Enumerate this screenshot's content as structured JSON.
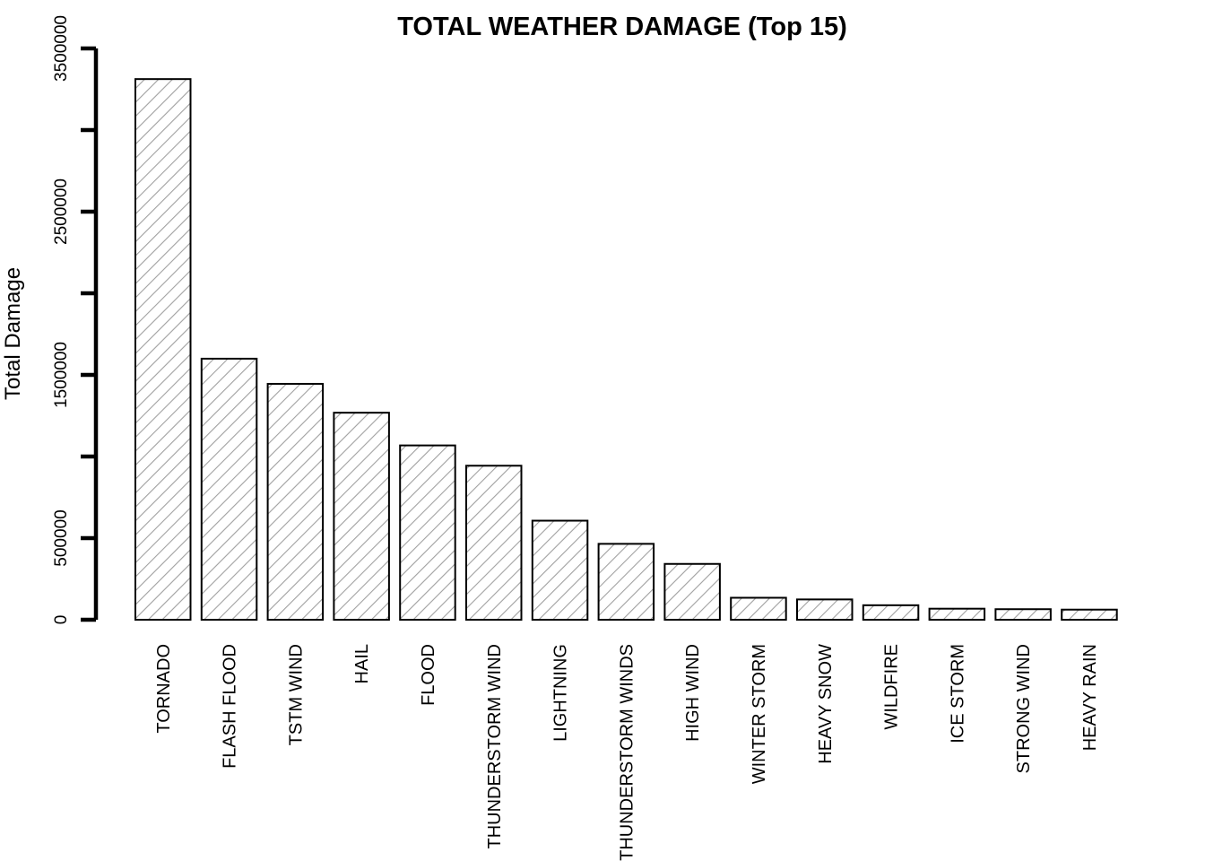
{
  "chart_data": {
    "type": "bar",
    "title": "TOTAL WEATHER DAMAGE (Top 15)",
    "xlabel": "",
    "ylabel": "Total Damage",
    "categories": [
      "TORNADO",
      "FLASH FLOOD",
      "TSTM WIND",
      "HAIL",
      "FLOOD",
      "THUNDERSTORM WIND",
      "LIGHTNING",
      "THUNDERSTORM WINDS",
      "HIGH WIND",
      "WINTER STORM",
      "HEAVY SNOW",
      "WILDFIRE",
      "ICE STORM",
      "STRONG WIND",
      "HEAVY RAIN"
    ],
    "values": [
      3312277,
      1599325,
      1445198,
      1268290,
      1067976,
      943636,
      606932,
      464978,
      342015,
      134700,
      124418,
      88824,
      67690,
      64611,
      61964
    ],
    "ylim": [
      0,
      3500000
    ],
    "yticks": [
      0,
      500000,
      1500000,
      2500000,
      3500000
    ],
    "grid": false,
    "legend": "none",
    "colors": {
      "bar_fill": "#ffffff",
      "bar_hatch": "#a0a0a0",
      "bar_border": "#000000",
      "axis": "#000000",
      "text": "#000000"
    }
  }
}
